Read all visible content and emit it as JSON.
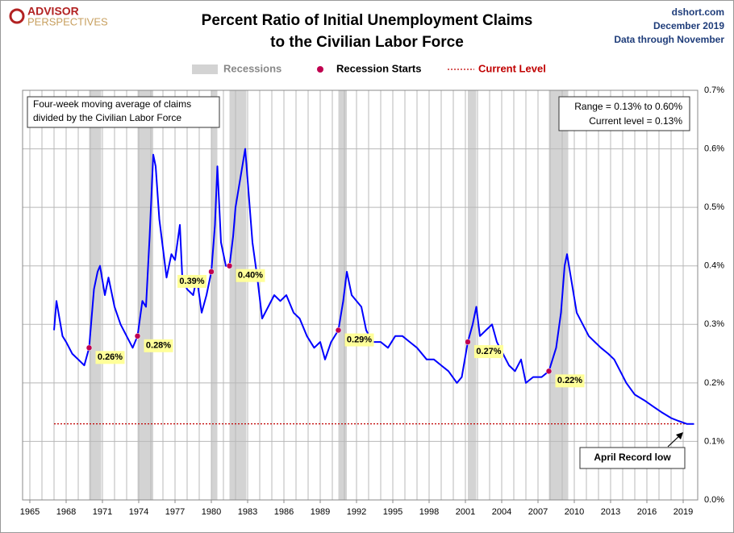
{
  "chart_data": {
    "type": "line",
    "logo": [
      "ADVISOR",
      "PERSPECTIVES"
    ],
    "title": [
      "Percent Ratio of Initial Unemployment Claims",
      "to the Civilian Labor Force"
    ],
    "source": [
      "dshort.com",
      "December 2019",
      "Data through November"
    ],
    "note": [
      "Four-week moving average of claims",
      "divided by the Civilian Labor Force"
    ],
    "range_box": [
      "Range = 0.13% to 0.60%",
      "Current level = 0.13%"
    ],
    "record": "April Record low",
    "xlim": [
      1964.4,
      2020.2
    ],
    "xticks": [
      1965,
      1968,
      1971,
      1974,
      1977,
      1980,
      1983,
      1986,
      1989,
      1992,
      1995,
      1998,
      2001,
      2004,
      2007,
      2010,
      2013,
      2016,
      2019
    ],
    "xgrid": [
      1965,
      1966,
      1967,
      1968,
      1969,
      1970,
      1971,
      1972,
      1973,
      1974,
      1975,
      1976,
      1977,
      1978,
      1979,
      1980,
      1981,
      1982,
      1983,
      1984,
      1985,
      1986,
      1987,
      1988,
      1989,
      1990,
      1991,
      1992,
      1993,
      1994,
      1995,
      1996,
      1997,
      1998,
      1999,
      2000,
      2001,
      2002,
      2003,
      2004,
      2005,
      2006,
      2007,
      2008,
      2009,
      2010,
      2011,
      2012,
      2013,
      2014,
      2015,
      2016,
      2017,
      2018,
      2019
    ],
    "ylim": [
      0,
      0.7
    ],
    "yticks": [
      {
        "value": 0,
        "label": "0.0%"
      },
      {
        "value": 0.1,
        "label": "0.1%"
      },
      {
        "value": 0.2,
        "label": "0.2%"
      },
      {
        "value": 0.3,
        "label": "0.3%"
      },
      {
        "value": 0.4,
        "label": "0.4%"
      },
      {
        "value": 0.5,
        "label": "0.5%"
      },
      {
        "value": 0.6,
        "label": "0.6%"
      },
      {
        "value": 0.7,
        "label": "0.7%"
      }
    ],
    "grid": true,
    "x": [
      1967.0,
      1967.2,
      1967.7,
      1968.0,
      1968.5,
      1969.0,
      1969.5,
      1969.9,
      1970.3,
      1970.6,
      1970.8,
      1971.2,
      1971.5,
      1972.0,
      1972.5,
      1973.0,
      1973.5,
      1973.9,
      1974.3,
      1974.6,
      1974.9,
      1975.2,
      1975.4,
      1975.7,
      1976.0,
      1976.3,
      1976.7,
      1977.0,
      1977.4,
      1977.6,
      1978.0,
      1978.5,
      1978.8,
      1979.2,
      1979.6,
      1980.0,
      1980.3,
      1980.5,
      1980.8,
      1981.2,
      1981.5,
      1981.8,
      1982.0,
      1982.4,
      1982.8,
      1983.1,
      1983.4,
      1983.8,
      1984.2,
      1984.7,
      1985.2,
      1985.7,
      1986.2,
      1986.8,
      1987.3,
      1987.9,
      1988.5,
      1989.0,
      1989.4,
      1989.9,
      1990.5,
      1990.9,
      1991.2,
      1991.6,
      1992.0,
      1992.4,
      1992.8,
      1993.3,
      1994.0,
      1994.6,
      1995.2,
      1995.8,
      1996.4,
      1997.0,
      1997.8,
      1998.4,
      1999.0,
      1999.6,
      2000.3,
      2000.7,
      2001.2,
      2001.6,
      2001.9,
      2002.2,
      2002.7,
      2003.2,
      2003.6,
      2004.1,
      2004.6,
      2005.1,
      2005.6,
      2006.0,
      2006.6,
      2007.3,
      2007.9,
      2008.5,
      2008.9,
      2009.2,
      2009.4,
      2009.8,
      2010.2,
      2010.7,
      2011.2,
      2011.7,
      2012.2,
      2012.8,
      2013.3,
      2013.8,
      2014.3,
      2015.0,
      2015.8,
      2016.5,
      2017.2,
      2018.0,
      2018.6,
      2019.3,
      2019.9
    ],
    "series": [
      {
        "color": "#0000ff",
        "values": [
          0.29,
          0.34,
          0.28,
          0.27,
          0.25,
          0.24,
          0.23,
          0.26,
          0.36,
          0.39,
          0.4,
          0.35,
          0.38,
          0.33,
          0.3,
          0.28,
          0.26,
          0.28,
          0.34,
          0.33,
          0.45,
          0.59,
          0.57,
          0.48,
          0.43,
          0.38,
          0.42,
          0.41,
          0.47,
          0.38,
          0.36,
          0.35,
          0.38,
          0.32,
          0.35,
          0.39,
          0.47,
          0.57,
          0.44,
          0.4,
          0.4,
          0.45,
          0.5,
          0.55,
          0.6,
          0.52,
          0.44,
          0.38,
          0.31,
          0.33,
          0.35,
          0.34,
          0.35,
          0.32,
          0.31,
          0.28,
          0.26,
          0.27,
          0.24,
          0.27,
          0.29,
          0.34,
          0.39,
          0.35,
          0.34,
          0.33,
          0.29,
          0.27,
          0.27,
          0.26,
          0.28,
          0.28,
          0.27,
          0.26,
          0.24,
          0.24,
          0.23,
          0.22,
          0.2,
          0.21,
          0.27,
          0.3,
          0.33,
          0.28,
          0.29,
          0.3,
          0.27,
          0.25,
          0.23,
          0.22,
          0.24,
          0.2,
          0.21,
          0.21,
          0.22,
          0.26,
          0.32,
          0.4,
          0.42,
          0.37,
          0.32,
          0.3,
          0.28,
          0.27,
          0.26,
          0.25,
          0.24,
          0.22,
          0.2,
          0.18,
          0.17,
          0.16,
          0.15,
          0.14,
          0.135,
          0.13,
          0.13
        ]
      }
    ],
    "recessions": {
      "name": "Recessions",
      "color": "#d3d3d3",
      "spans": [
        [
          1969.9,
          1970.9
        ],
        [
          1973.9,
          1975.2
        ],
        [
          1980.0,
          1980.5
        ],
        [
          1981.5,
          1982.9
        ],
        [
          1990.5,
          1991.2
        ],
        [
          2001.2,
          2001.9
        ],
        [
          2007.9,
          2009.5
        ]
      ]
    },
    "recession_starts": {
      "name": "Recession Starts",
      "color": "#c0004f",
      "x": [
        1969.9,
        1973.9,
        1980.0,
        1981.5,
        1990.5,
        2001.2,
        2007.9
      ],
      "values": [
        0.26,
        0.28,
        0.39,
        0.4,
        0.29,
        0.27,
        0.22
      ],
      "value_labels": [
        "0.26%",
        "0.28%",
        "0.39%",
        "0.40%",
        "0.29%",
        "0.27%",
        "0.22%"
      ]
    },
    "current_level": {
      "name": "Current Level",
      "color": "#c00000",
      "value": 0.13
    }
  }
}
